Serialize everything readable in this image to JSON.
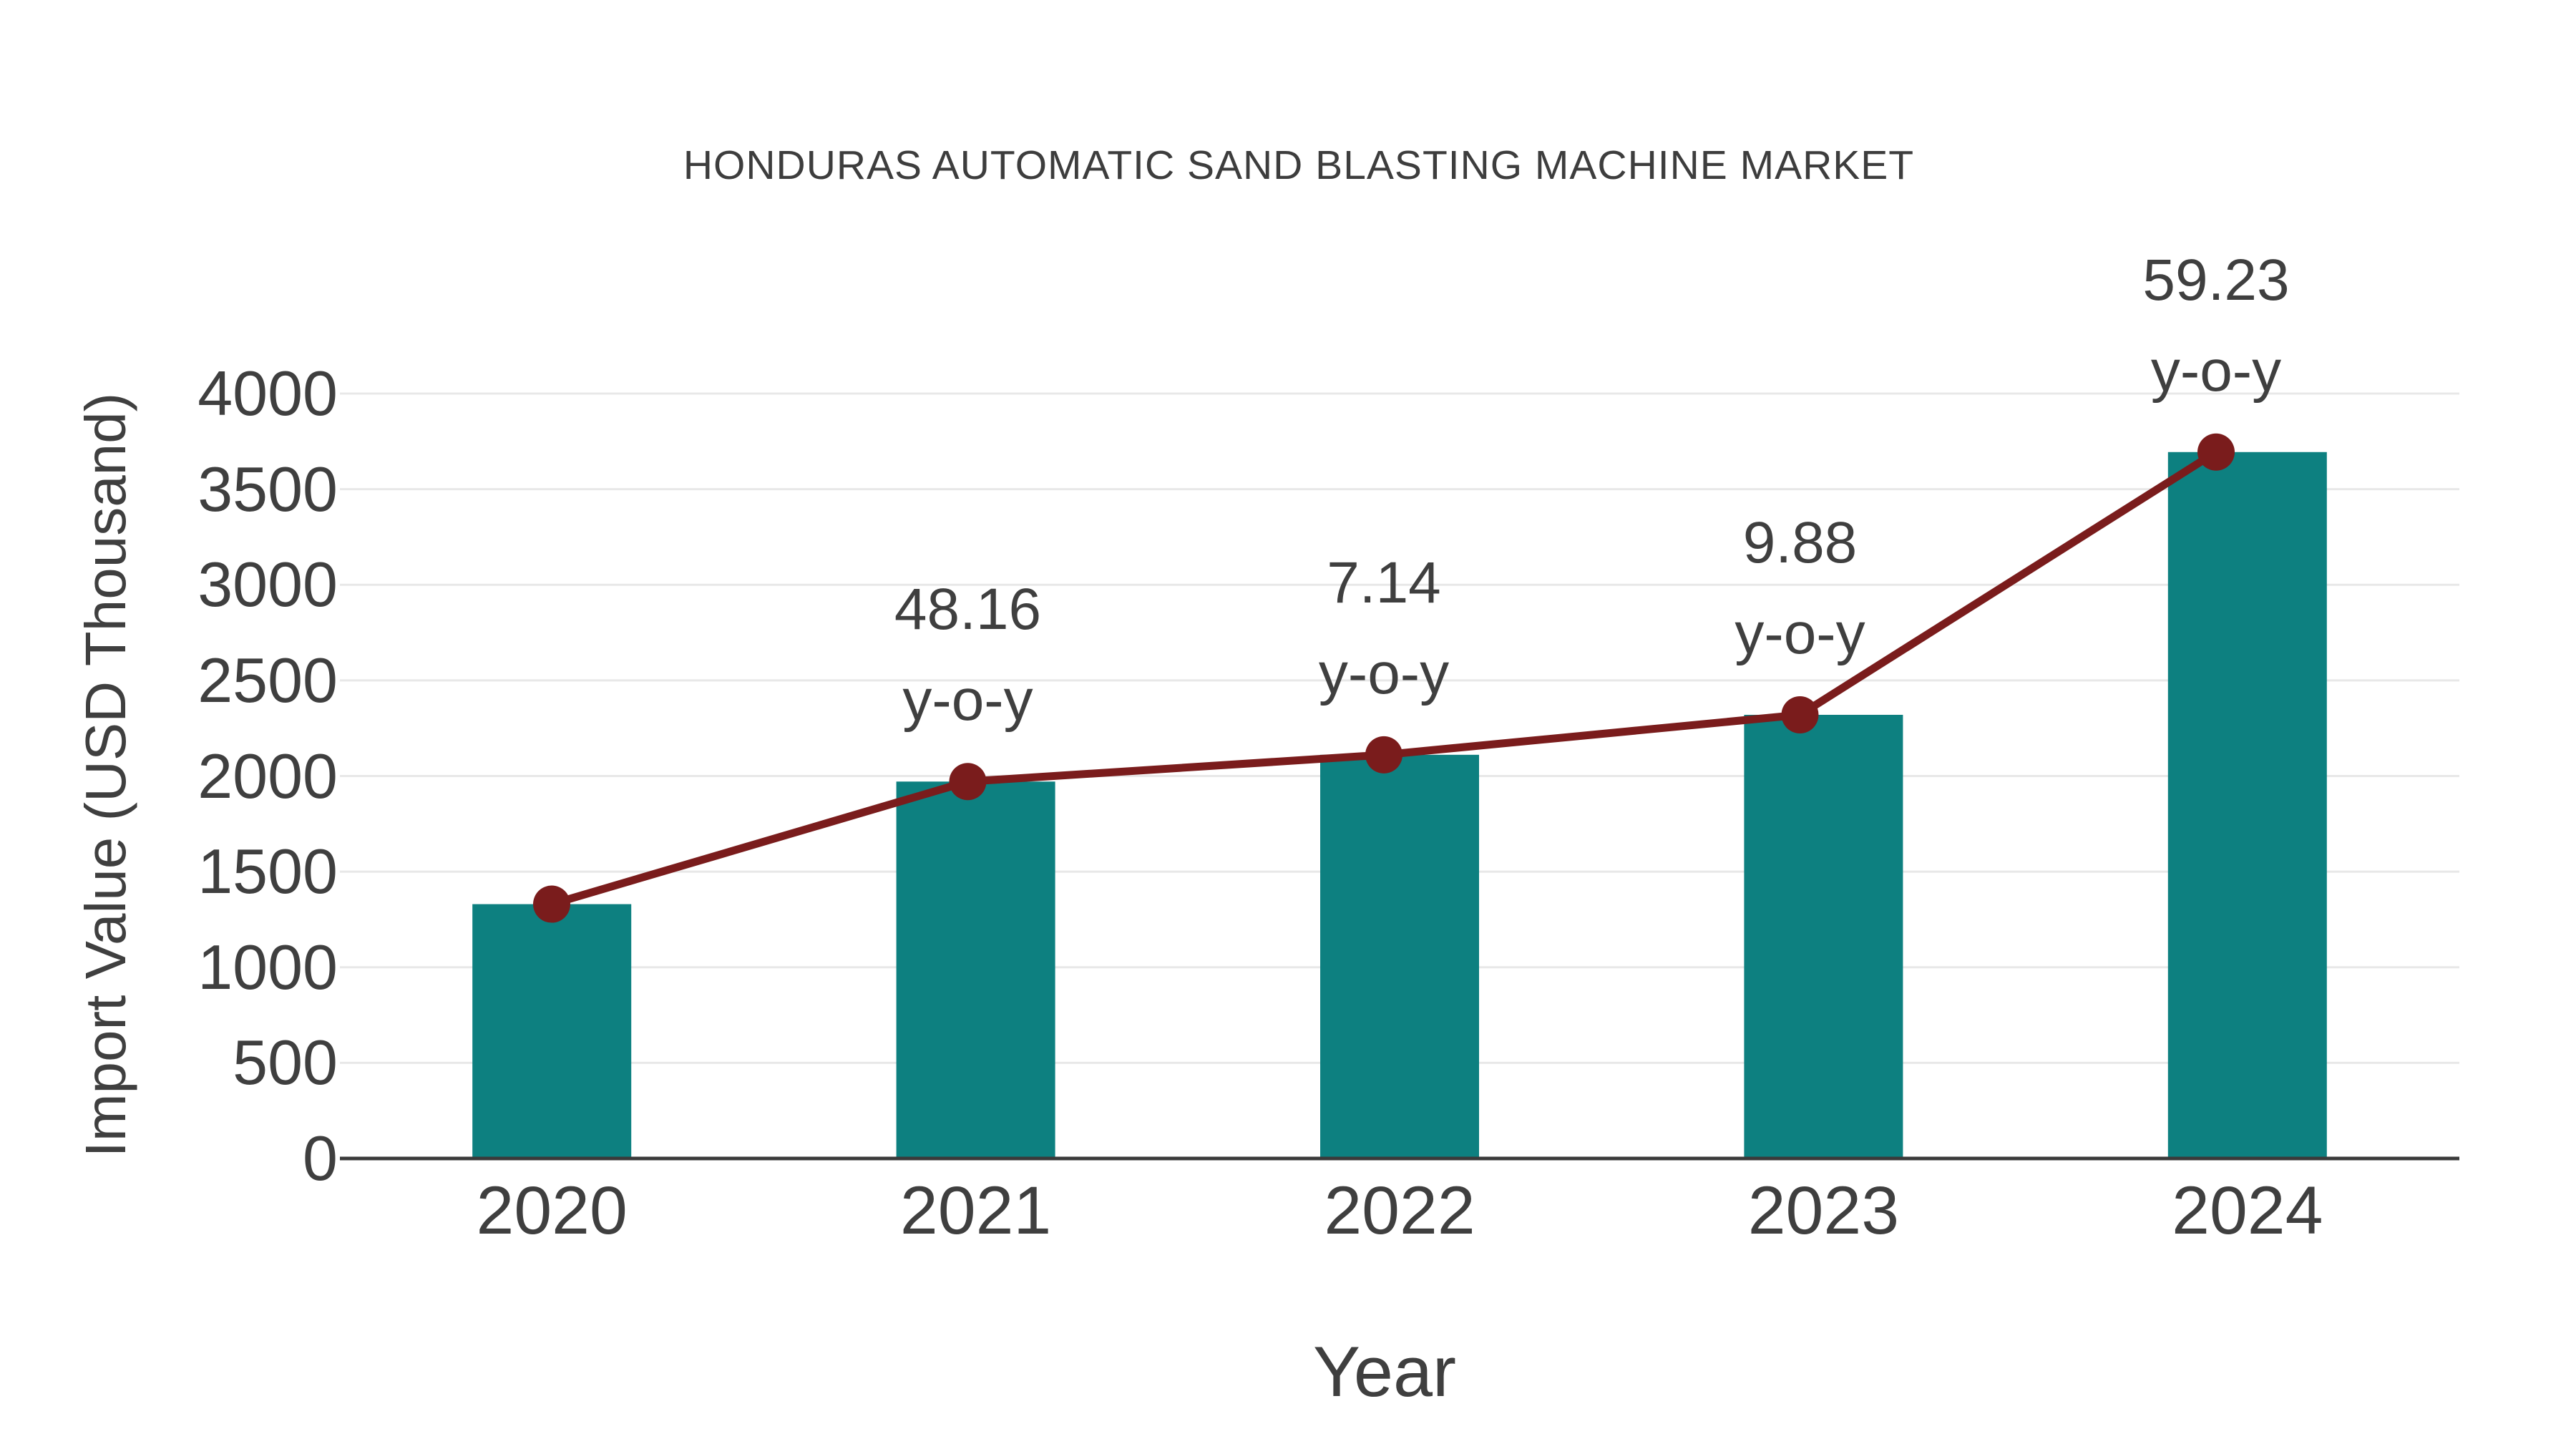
{
  "colors": {
    "background": "#ffffff",
    "bar": "#0d8080",
    "line": "#7a1c1c",
    "marker": "#7a1c1c",
    "grid": "#e8e8e8",
    "axis_line": "#3a3a3a",
    "text": "#3f3f3f",
    "title_text": "#3d3d3d"
  },
  "chart_data": {
    "type": "bar",
    "title": "HONDURAS AUTOMATIC SAND BLASTING MACHINE MARKET",
    "xlabel": "Year",
    "ylabel": "Import Value (USD Thousand)",
    "categories": [
      "2020",
      "2021",
      "2022",
      "2023",
      "2024"
    ],
    "series": [
      {
        "name": "Import Value (USD Thousand)",
        "type": "bar",
        "values": [
          1330,
          1971,
          2111,
          2320,
          3694
        ]
      },
      {
        "name": "Year-over-year trend line",
        "type": "line",
        "values": [
          1330,
          1971,
          2111,
          2320,
          3694
        ]
      }
    ],
    "annotations": [
      {
        "category": "2021",
        "label": "48.16",
        "sublabel": "y-o-y"
      },
      {
        "category": "2022",
        "label": "7.14",
        "sublabel": "y-o-y"
      },
      {
        "category": "2023",
        "label": "9.88",
        "sublabel": "y-o-y"
      },
      {
        "category": "2024",
        "label": "59.23",
        "sublabel": "y-o-y"
      }
    ],
    "ylim": [
      0,
      4000
    ],
    "yticks": [
      0,
      500,
      1000,
      1500,
      2000,
      2500,
      3000,
      3500,
      4000
    ],
    "grid": "horizontal",
    "legend_position": "none"
  }
}
